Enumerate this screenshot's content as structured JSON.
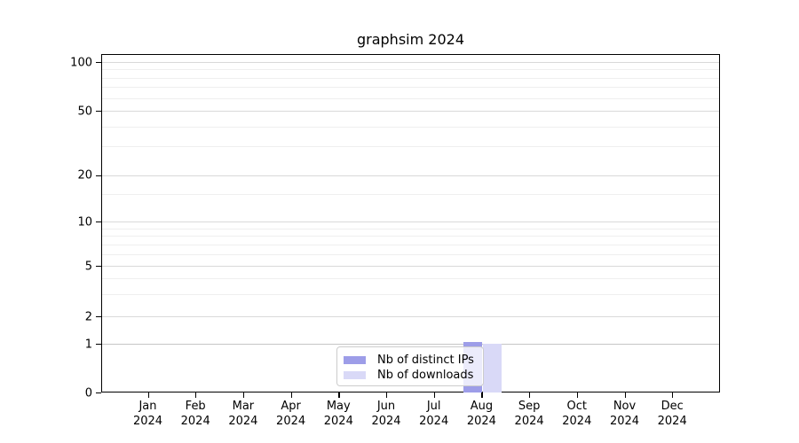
{
  "title": "graphsim 2024",
  "colors": {
    "distinct_ips": "#9d9de8",
    "downloads": "#d9d9f7",
    "grid_major": "#d9d9d9",
    "grid_minor": "#efefef",
    "grid_one_line": "#c6c6c6",
    "axis": "#000000",
    "legend_border": "#cccccc"
  },
  "chart_data": {
    "type": "bar",
    "title": "graphsim 2024",
    "categories": [
      "Jan 2024",
      "Feb 2024",
      "Mar 2024",
      "Apr 2024",
      "May 2024",
      "Jun 2024",
      "Jul 2024",
      "Aug 2024",
      "Sep 2024",
      "Oct 2024",
      "Nov 2024",
      "Dec 2024"
    ],
    "series": [
      {
        "name": "Nb of distinct IPs",
        "color": "#9d9de8",
        "values": [
          0,
          0,
          0,
          0,
          0,
          0,
          0,
          1,
          0,
          0,
          0,
          0
        ]
      },
      {
        "name": "Nb of downloads",
        "color": "#d9d9f7",
        "values": [
          0,
          0,
          0,
          0,
          0,
          0,
          0,
          1,
          0,
          0,
          0,
          0
        ]
      }
    ],
    "yscale": "pseudo-log",
    "y_ticks": [
      0,
      1,
      2,
      5,
      10,
      20,
      50,
      100
    ],
    "y_minor_ticks": [
      3,
      4,
      6,
      7,
      8,
      9,
      15,
      30,
      40,
      60,
      70,
      80,
      90
    ],
    "ylim": [
      0,
      115
    ],
    "xlabel": "",
    "ylabel": "",
    "grid": "horizontal",
    "legend_position": "inside-bottom-center"
  }
}
